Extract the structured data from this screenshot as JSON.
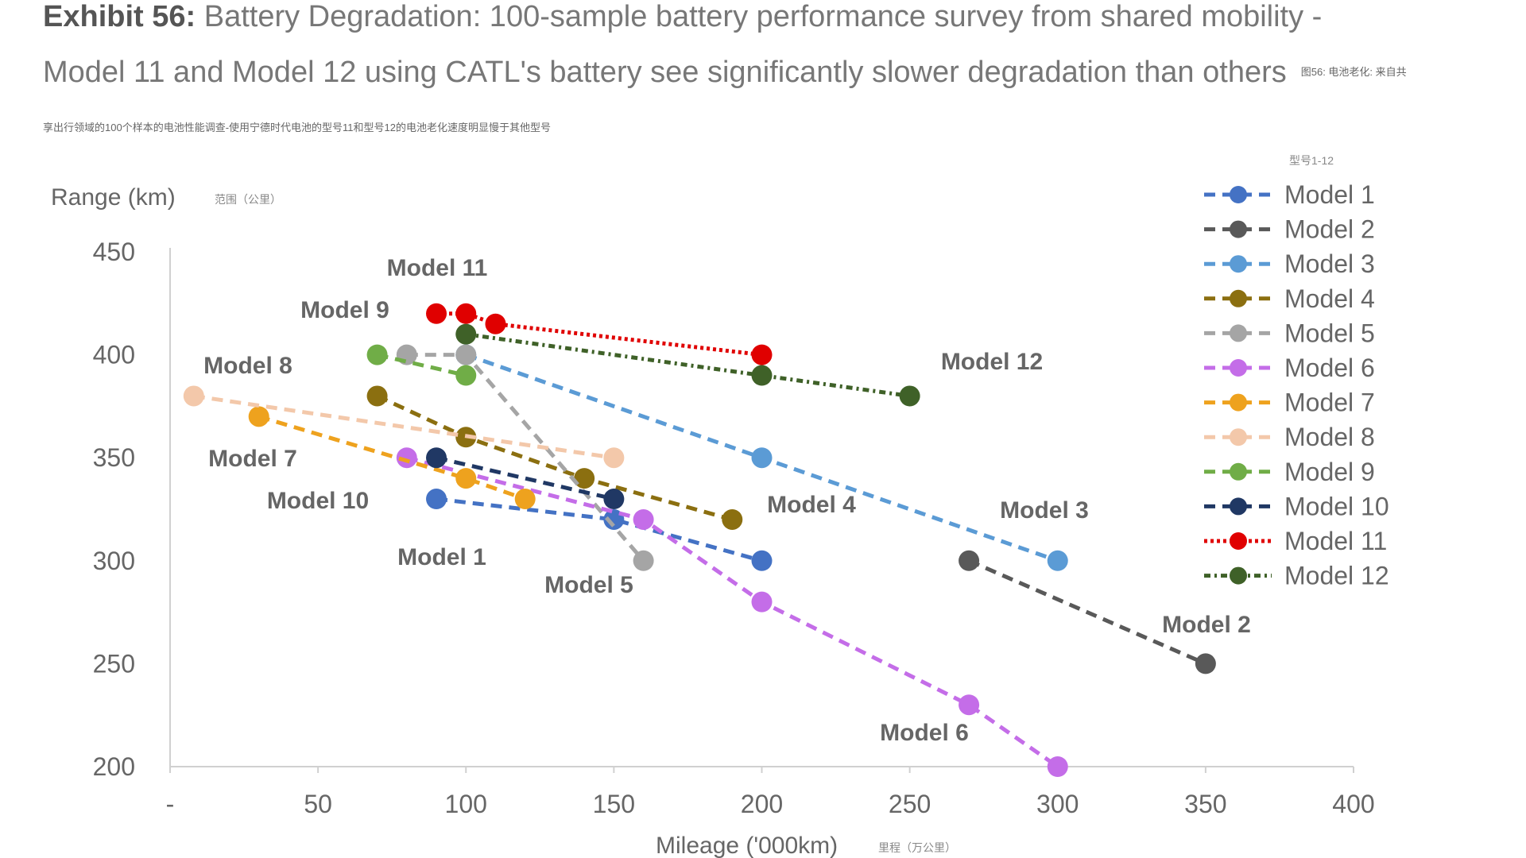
{
  "title": {
    "exhibit": "Exhibit 56:",
    "text": "Battery Degradation: 100-sample battery performance survey from shared mobility - Model 11 and Model 12 using CATL's battery see significantly slower degradation than others",
    "cn": "图56: 电池老化: 来自共享出行领域的100个样本的电池性能调查-使用宁德时代电池的型号11和型号12的电池老化速度明显慢于其他型号"
  },
  "chart_data": {
    "type": "line",
    "ylabel": "Range (km)",
    "ylabel_cn": "范围（公里）",
    "xlabel": "Mileage ('000km)",
    "xlabel_cn": "里程（万公里）",
    "legend_title": "型号1-12",
    "legend_position": "right",
    "xlim": [
      0,
      400
    ],
    "ylim": [
      200,
      450
    ],
    "xticks": [
      "-",
      "50",
      "100",
      "150",
      "200",
      "250",
      "300",
      "350",
      "400"
    ],
    "yticks": [
      "200",
      "250",
      "300",
      "350",
      "400",
      "450"
    ],
    "grid": false,
    "series": [
      {
        "name": "Model 1",
        "color": "#4472c4",
        "dash": "dashed",
        "x": [
          90,
          150,
          200
        ],
        "y": [
          330,
          320,
          300
        ]
      },
      {
        "name": "Model 2",
        "color": "#595959",
        "dash": "dashed",
        "x": [
          270,
          350
        ],
        "y": [
          300,
          250
        ]
      },
      {
        "name": "Model 3",
        "color": "#5b9bd5",
        "dash": "dashed",
        "x": [
          100,
          200,
          300
        ],
        "y": [
          400,
          350,
          300
        ]
      },
      {
        "name": "Model 4",
        "color": "#8b6f10",
        "dash": "dashed",
        "x": [
          70,
          100,
          140,
          190
        ],
        "y": [
          380,
          360,
          340,
          320
        ]
      },
      {
        "name": "Model 5",
        "color": "#a5a5a5",
        "dash": "dashed",
        "x": [
          80,
          100,
          160
        ],
        "y": [
          400,
          400,
          300
        ]
      },
      {
        "name": "Model 6",
        "color": "#c46de8",
        "dash": "dashed",
        "x": [
          80,
          160,
          200,
          270,
          300
        ],
        "y": [
          350,
          320,
          280,
          230,
          200
        ]
      },
      {
        "name": "Model 7",
        "color": "#eea21e",
        "dash": "dashed",
        "x": [
          30,
          100,
          120
        ],
        "y": [
          370,
          340,
          330
        ]
      },
      {
        "name": "Model 8",
        "color": "#f3c8aa",
        "dash": "dashed",
        "x": [
          8,
          150
        ],
        "y": [
          380,
          350
        ]
      },
      {
        "name": "Model 9",
        "color": "#70ad47",
        "dash": "dashed",
        "x": [
          70,
          100
        ],
        "y": [
          400,
          390
        ]
      },
      {
        "name": "Model 10",
        "color": "#203864",
        "dash": "dashed",
        "x": [
          90,
          150
        ],
        "y": [
          350,
          330
        ]
      },
      {
        "name": "Model 11",
        "color": "#e00000",
        "dash": "dotted",
        "x": [
          90,
          100,
          110,
          200
        ],
        "y": [
          420,
          420,
          415,
          400
        ]
      },
      {
        "name": "Model 12",
        "color": "#3f6128",
        "dash": "dashdot",
        "x": [
          100,
          200,
          250
        ],
        "y": [
          410,
          390,
          380
        ]
      }
    ]
  }
}
